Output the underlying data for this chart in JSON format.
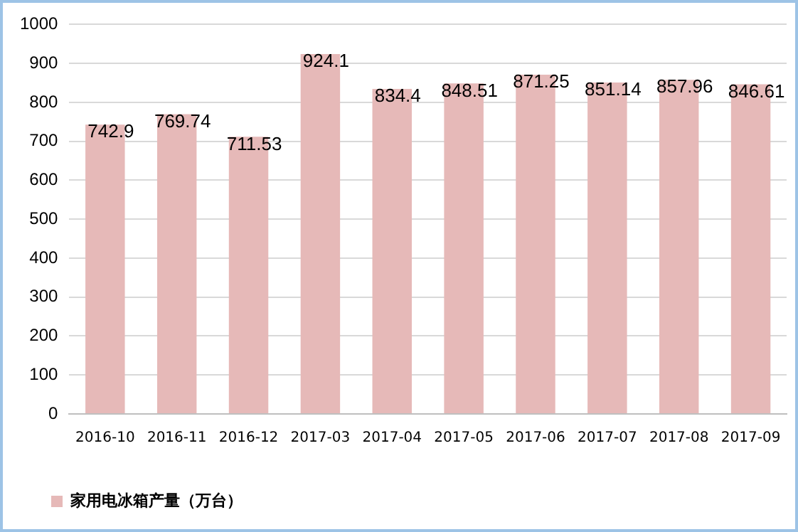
{
  "chart_data": {
    "type": "bar",
    "categories": [
      "2016-10",
      "2016-11",
      "2016-12",
      "2017-03",
      "2017-04",
      "2017-05",
      "2017-06",
      "2017-07",
      "2017-08",
      "2017-09"
    ],
    "series": [
      {
        "name": "家用电冰箱产量（万台）",
        "color": "#e6b9b8",
        "values": [
          742.9,
          769.74,
          711.53,
          924.1,
          834.4,
          848.51,
          871.25,
          851.14,
          857.96,
          846.61
        ]
      }
    ],
    "ylim": [
      0,
      1000
    ],
    "yticks": [
      0,
      100,
      200,
      300,
      400,
      500,
      600,
      700,
      800,
      900,
      1000
    ],
    "grid": "y",
    "legend": "bottom left",
    "data_labels": true
  }
}
